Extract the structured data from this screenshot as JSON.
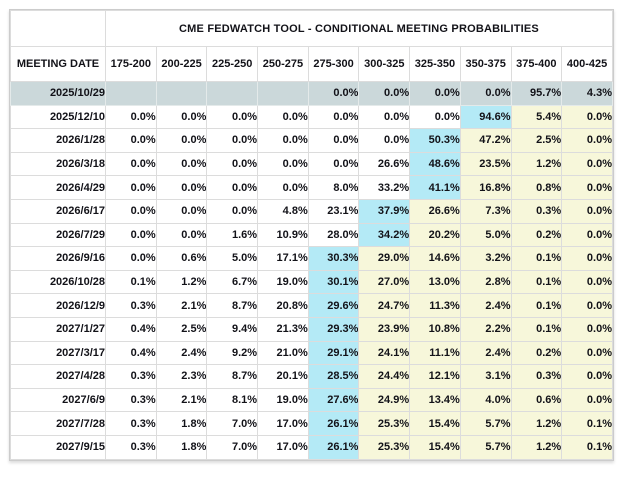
{
  "title": "CME FEDWATCH TOOL - CONDITIONAL MEETING PROBABILITIES",
  "columns": [
    "MEETING DATE",
    "175-200",
    "200-225",
    "225-250",
    "250-275",
    "275-300",
    "300-325",
    "325-350",
    "350-375",
    "375-400",
    "400-425"
  ],
  "colors": {
    "text": "#121218",
    "border": "#dcdcdc",
    "outer_border": "#cccccc",
    "selected_row_bg": "#cbd8da",
    "cyan_highlight": "#b4eaf6",
    "yellow_highlight": "#f7f7da",
    "background": "#ffffff"
  },
  "rows": [
    {
      "date": "2025/10/29",
      "selected": true,
      "cyan": -1,
      "yellow_from": -1,
      "values": [
        "",
        "",
        "",
        "",
        "0.0%",
        "0.0%",
        "0.0%",
        "0.0%",
        "95.7%",
        "4.3%"
      ]
    },
    {
      "date": "2025/12/10",
      "selected": false,
      "cyan": 7,
      "yellow_from": 8,
      "values": [
        "0.0%",
        "0.0%",
        "0.0%",
        "0.0%",
        "0.0%",
        "0.0%",
        "0.0%",
        "94.6%",
        "5.4%",
        "0.0%"
      ]
    },
    {
      "date": "2026/1/28",
      "selected": false,
      "cyan": 6,
      "yellow_from": 7,
      "values": [
        "0.0%",
        "0.0%",
        "0.0%",
        "0.0%",
        "0.0%",
        "0.0%",
        "50.3%",
        "47.2%",
        "2.5%",
        "0.0%"
      ]
    },
    {
      "date": "2026/3/18",
      "selected": false,
      "cyan": 6,
      "yellow_from": 7,
      "values": [
        "0.0%",
        "0.0%",
        "0.0%",
        "0.0%",
        "0.0%",
        "26.6%",
        "48.6%",
        "23.5%",
        "1.2%",
        "0.0%"
      ]
    },
    {
      "date": "2026/4/29",
      "selected": false,
      "cyan": 6,
      "yellow_from": 7,
      "values": [
        "0.0%",
        "0.0%",
        "0.0%",
        "0.0%",
        "8.0%",
        "33.2%",
        "41.1%",
        "16.8%",
        "0.8%",
        "0.0%"
      ]
    },
    {
      "date": "2026/6/17",
      "selected": false,
      "cyan": 5,
      "yellow_from": 6,
      "values": [
        "0.0%",
        "0.0%",
        "0.0%",
        "4.8%",
        "23.1%",
        "37.9%",
        "26.6%",
        "7.3%",
        "0.3%",
        "0.0%"
      ]
    },
    {
      "date": "2026/7/29",
      "selected": false,
      "cyan": 5,
      "yellow_from": 6,
      "values": [
        "0.0%",
        "0.0%",
        "1.6%",
        "10.9%",
        "28.0%",
        "34.2%",
        "20.2%",
        "5.0%",
        "0.2%",
        "0.0%"
      ]
    },
    {
      "date": "2026/9/16",
      "selected": false,
      "cyan": 4,
      "yellow_from": 5,
      "values": [
        "0.0%",
        "0.6%",
        "5.0%",
        "17.1%",
        "30.3%",
        "29.0%",
        "14.6%",
        "3.2%",
        "0.1%",
        "0.0%"
      ]
    },
    {
      "date": "2026/10/28",
      "selected": false,
      "cyan": 4,
      "yellow_from": 5,
      "values": [
        "0.1%",
        "1.2%",
        "6.7%",
        "19.0%",
        "30.1%",
        "27.0%",
        "13.0%",
        "2.8%",
        "0.1%",
        "0.0%"
      ]
    },
    {
      "date": "2026/12/9",
      "selected": false,
      "cyan": 4,
      "yellow_from": 5,
      "values": [
        "0.3%",
        "2.1%",
        "8.7%",
        "20.8%",
        "29.6%",
        "24.7%",
        "11.3%",
        "2.4%",
        "0.1%",
        "0.0%"
      ]
    },
    {
      "date": "2027/1/27",
      "selected": false,
      "cyan": 4,
      "yellow_from": 5,
      "values": [
        "0.4%",
        "2.5%",
        "9.4%",
        "21.3%",
        "29.3%",
        "23.9%",
        "10.8%",
        "2.2%",
        "0.1%",
        "0.0%"
      ]
    },
    {
      "date": "2027/3/17",
      "selected": false,
      "cyan": 4,
      "yellow_from": 5,
      "values": [
        "0.4%",
        "2.4%",
        "9.2%",
        "21.0%",
        "29.1%",
        "24.1%",
        "11.1%",
        "2.4%",
        "0.2%",
        "0.0%"
      ]
    },
    {
      "date": "2027/4/28",
      "selected": false,
      "cyan": 4,
      "yellow_from": 5,
      "values": [
        "0.3%",
        "2.3%",
        "8.7%",
        "20.1%",
        "28.5%",
        "24.4%",
        "12.1%",
        "3.1%",
        "0.3%",
        "0.0%"
      ]
    },
    {
      "date": "2027/6/9",
      "selected": false,
      "cyan": 4,
      "yellow_from": 5,
      "values": [
        "0.3%",
        "2.1%",
        "8.1%",
        "19.0%",
        "27.6%",
        "24.9%",
        "13.4%",
        "4.0%",
        "0.6%",
        "0.0%"
      ]
    },
    {
      "date": "2027/7/28",
      "selected": false,
      "cyan": 4,
      "yellow_from": 5,
      "values": [
        "0.3%",
        "1.8%",
        "7.0%",
        "17.0%",
        "26.1%",
        "25.3%",
        "15.4%",
        "5.7%",
        "1.2%",
        "0.1%"
      ]
    },
    {
      "date": "2027/9/15",
      "selected": false,
      "cyan": 4,
      "yellow_from": 5,
      "values": [
        "0.3%",
        "1.8%",
        "7.0%",
        "17.0%",
        "26.1%",
        "25.3%",
        "15.4%",
        "5.7%",
        "1.2%",
        "0.1%"
      ]
    }
  ]
}
